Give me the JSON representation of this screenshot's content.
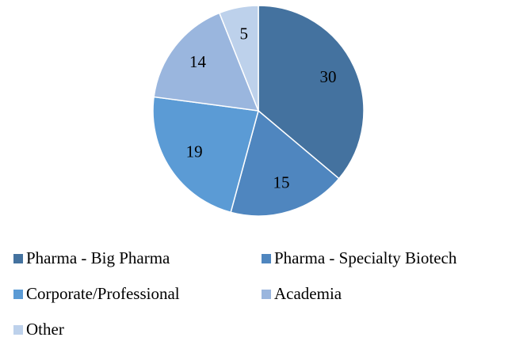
{
  "chart_data": {
    "type": "pie",
    "categories": [
      "Pharma - Big Pharma",
      "Pharma - Specialty Biotech",
      "Corporate/Professional",
      "Academia",
      "Other"
    ],
    "values": [
      30,
      15,
      19,
      14,
      5
    ],
    "colors": [
      "#44729f",
      "#4f86bf",
      "#5b9bd5",
      "#9ab6de",
      "#bdd1eb"
    ],
    "legend": "bottom"
  }
}
